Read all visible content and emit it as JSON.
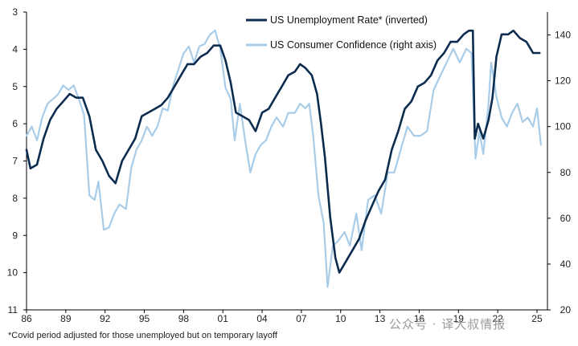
{
  "chart_data": {
    "type": "line",
    "left_axis_ticks": [
      "3",
      "4",
      "5",
      "6",
      "7",
      "8",
      "9",
      "10",
      "11"
    ],
    "right_axis_ticks": [
      "140",
      "120",
      "100",
      "80",
      "60",
      "40",
      "20"
    ],
    "x_ticks": [
      "86",
      "89",
      "92",
      "95",
      "98",
      "01",
      "04",
      "07",
      "10",
      "13",
      "16",
      "19",
      "22",
      "25"
    ],
    "left_range": [
      3,
      11
    ],
    "left_inverted": true,
    "right_range": [
      20,
      150
    ],
    "x_range": [
      1986,
      2025.8
    ],
    "series": [
      {
        "name": "US Unemployment Rate* (inverted)",
        "axis": "left",
        "color": "#0c2c4f",
        "points": [
          [
            1986.0,
            6.7
          ],
          [
            1986.3,
            7.2
          ],
          [
            1986.8,
            7.1
          ],
          [
            1987.3,
            6.4
          ],
          [
            1987.8,
            5.9
          ],
          [
            1988.3,
            5.6
          ],
          [
            1988.8,
            5.4
          ],
          [
            1989.3,
            5.2
          ],
          [
            1989.8,
            5.3
          ],
          [
            1990.3,
            5.3
          ],
          [
            1990.8,
            5.8
          ],
          [
            1991.3,
            6.7
          ],
          [
            1991.8,
            7.0
          ],
          [
            1992.3,
            7.4
          ],
          [
            1992.8,
            7.6
          ],
          [
            1993.3,
            7.0
          ],
          [
            1993.8,
            6.7
          ],
          [
            1994.3,
            6.4
          ],
          [
            1994.8,
            5.8
          ],
          [
            1995.3,
            5.7
          ],
          [
            1995.8,
            5.6
          ],
          [
            1996.3,
            5.5
          ],
          [
            1996.8,
            5.3
          ],
          [
            1997.3,
            5.0
          ],
          [
            1997.8,
            4.7
          ],
          [
            1998.3,
            4.4
          ],
          [
            1998.8,
            4.4
          ],
          [
            1999.3,
            4.2
          ],
          [
            1999.8,
            4.1
          ],
          [
            2000.3,
            3.9
          ],
          [
            2000.8,
            3.9
          ],
          [
            2001.2,
            4.3
          ],
          [
            2001.6,
            4.9
          ],
          [
            2002.0,
            5.7
          ],
          [
            2002.5,
            5.8
          ],
          [
            2003.0,
            5.9
          ],
          [
            2003.5,
            6.2
          ],
          [
            2004.0,
            5.7
          ],
          [
            2004.5,
            5.6
          ],
          [
            2005.0,
            5.3
          ],
          [
            2005.5,
            5.0
          ],
          [
            2006.0,
            4.7
          ],
          [
            2006.5,
            4.6
          ],
          [
            2006.9,
            4.4
          ],
          [
            2007.3,
            4.5
          ],
          [
            2007.8,
            4.7
          ],
          [
            2008.2,
            5.2
          ],
          [
            2008.5,
            6.0
          ],
          [
            2008.8,
            6.9
          ],
          [
            2009.2,
            8.5
          ],
          [
            2009.6,
            9.6
          ],
          [
            2009.9,
            10.0
          ],
          [
            2010.4,
            9.7
          ],
          [
            2010.9,
            9.4
          ],
          [
            2011.4,
            9.1
          ],
          [
            2011.9,
            8.6
          ],
          [
            2012.4,
            8.2
          ],
          [
            2012.9,
            7.8
          ],
          [
            2013.4,
            7.5
          ],
          [
            2013.9,
            6.7
          ],
          [
            2014.4,
            6.2
          ],
          [
            2014.9,
            5.6
          ],
          [
            2015.4,
            5.4
          ],
          [
            2015.9,
            5.0
          ],
          [
            2016.4,
            4.9
          ],
          [
            2016.9,
            4.7
          ],
          [
            2017.4,
            4.3
          ],
          [
            2017.9,
            4.1
          ],
          [
            2018.4,
            3.8
          ],
          [
            2018.9,
            3.8
          ],
          [
            2019.4,
            3.6
          ],
          [
            2019.8,
            3.5
          ],
          [
            2020.1,
            3.5
          ],
          [
            2020.25,
            6.4
          ],
          [
            2020.5,
            6.0
          ],
          [
            2020.9,
            6.4
          ],
          [
            2021.3,
            5.9
          ],
          [
            2021.6,
            5.3
          ],
          [
            2021.9,
            4.2
          ],
          [
            2022.3,
            3.6
          ],
          [
            2022.8,
            3.6
          ],
          [
            2023.2,
            3.5
          ],
          [
            2023.7,
            3.7
          ],
          [
            2024.2,
            3.8
          ],
          [
            2024.7,
            4.1
          ],
          [
            2025.2,
            4.1
          ]
        ]
      },
      {
        "name": "US Consumer Confidence (right axis)",
        "axis": "right",
        "color": "#a9cde8",
        "points": [
          [
            1986.0,
            96
          ],
          [
            1986.4,
            100
          ],
          [
            1986.8,
            94
          ],
          [
            1987.2,
            104
          ],
          [
            1987.6,
            110
          ],
          [
            1988.0,
            112
          ],
          [
            1988.4,
            114
          ],
          [
            1988.8,
            118
          ],
          [
            1989.2,
            116
          ],
          [
            1989.6,
            118
          ],
          [
            1990.0,
            112
          ],
          [
            1990.4,
            105
          ],
          [
            1990.8,
            70
          ],
          [
            1991.2,
            68
          ],
          [
            1991.5,
            76
          ],
          [
            1991.9,
            55
          ],
          [
            1992.3,
            56
          ],
          [
            1992.7,
            62
          ],
          [
            1993.1,
            66
          ],
          [
            1993.6,
            64
          ],
          [
            1994.0,
            82
          ],
          [
            1994.4,
            90
          ],
          [
            1994.8,
            94
          ],
          [
            1995.2,
            100
          ],
          [
            1995.6,
            96
          ],
          [
            1996.0,
            100
          ],
          [
            1996.4,
            108
          ],
          [
            1996.8,
            107
          ],
          [
            1997.2,
            118
          ],
          [
            1997.6,
            125
          ],
          [
            1998.0,
            132
          ],
          [
            1998.4,
            135
          ],
          [
            1998.8,
            128
          ],
          [
            1999.2,
            135
          ],
          [
            1999.6,
            136
          ],
          [
            2000.0,
            140
          ],
          [
            2000.4,
            142
          ],
          [
            2000.8,
            134
          ],
          [
            2001.2,
            117
          ],
          [
            2001.6,
            112
          ],
          [
            2001.9,
            94
          ],
          [
            2002.3,
            110
          ],
          [
            2002.7,
            94
          ],
          [
            2003.1,
            80
          ],
          [
            2003.5,
            88
          ],
          [
            2003.9,
            92
          ],
          [
            2004.3,
            94
          ],
          [
            2004.7,
            100
          ],
          [
            2005.1,
            104
          ],
          [
            2005.6,
            100
          ],
          [
            2006.0,
            106
          ],
          [
            2006.5,
            106
          ],
          [
            2006.9,
            110
          ],
          [
            2007.3,
            108
          ],
          [
            2007.6,
            110
          ],
          [
            2007.9,
            96
          ],
          [
            2008.3,
            70
          ],
          [
            2008.7,
            58
          ],
          [
            2009.0,
            30
          ],
          [
            2009.4,
            48
          ],
          [
            2009.8,
            50
          ],
          [
            2010.3,
            54
          ],
          [
            2010.7,
            48
          ],
          [
            2011.2,
            62
          ],
          [
            2011.6,
            46
          ],
          [
            2012.1,
            68
          ],
          [
            2012.6,
            70
          ],
          [
            2013.1,
            62
          ],
          [
            2013.6,
            80
          ],
          [
            2014.1,
            80
          ],
          [
            2014.6,
            90
          ],
          [
            2015.1,
            100
          ],
          [
            2015.6,
            96
          ],
          [
            2016.1,
            96
          ],
          [
            2016.6,
            98
          ],
          [
            2017.1,
            116
          ],
          [
            2017.6,
            122
          ],
          [
            2018.1,
            128
          ],
          [
            2018.6,
            134
          ],
          [
            2019.1,
            128
          ],
          [
            2019.6,
            134
          ],
          [
            2020.0,
            132
          ],
          [
            2020.3,
            86
          ],
          [
            2020.6,
            98
          ],
          [
            2020.9,
            88
          ],
          [
            2021.3,
            110
          ],
          [
            2021.5,
            128
          ],
          [
            2021.9,
            113
          ],
          [
            2022.3,
            104
          ],
          [
            2022.7,
            100
          ],
          [
            2023.1,
            106
          ],
          [
            2023.5,
            110
          ],
          [
            2023.9,
            102
          ],
          [
            2024.3,
            104
          ],
          [
            2024.7,
            100
          ],
          [
            2025.0,
            108
          ],
          [
            2025.3,
            92
          ]
        ]
      }
    ],
    "footnote": "*Covid period adjusted for those unemployed but on temporary layoff",
    "watermark": "公众号 · 译大叔情报"
  }
}
